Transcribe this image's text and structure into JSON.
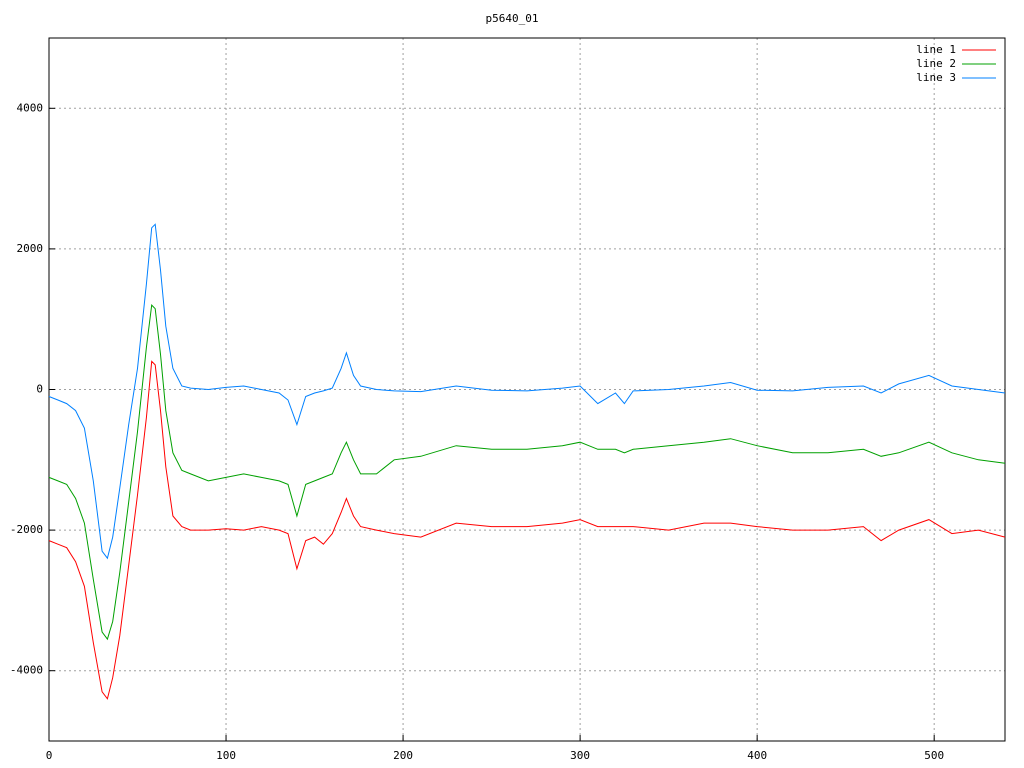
{
  "chart_data": {
    "type": "line",
    "title": "p5640_01",
    "x": [
      0,
      5,
      10,
      15,
      20,
      25,
      30,
      33,
      36,
      40,
      45,
      50,
      55,
      58,
      60,
      63,
      66,
      70,
      75,
      80,
      90,
      100,
      110,
      120,
      130,
      135,
      140,
      145,
      150,
      155,
      160,
      165,
      168,
      172,
      176,
      185,
      195,
      210,
      230,
      250,
      270,
      290,
      300,
      310,
      320,
      325,
      330,
      350,
      370,
      385,
      400,
      420,
      440,
      460,
      470,
      480,
      497,
      510,
      525,
      540
    ],
    "series": [
      {
        "name": "line 1",
        "color": "#ff0000",
        "values": [
          -2150,
          -2200,
          -2250,
          -2450,
          -2800,
          -3600,
          -4300,
          -4400,
          -4100,
          -3500,
          -2500,
          -1500,
          -400,
          400,
          350,
          -300,
          -1100,
          -1800,
          -1950,
          -2000,
          -2000,
          -1980,
          -2000,
          -1950,
          -2000,
          -2050,
          -2550,
          -2150,
          -2100,
          -2200,
          -2050,
          -1750,
          -1550,
          -1800,
          -1950,
          -2000,
          -2050,
          -2100,
          -1900,
          -1950,
          -1950,
          -1900,
          -1850,
          -1950,
          -1950,
          -1950,
          -1950,
          -2000,
          -1900,
          -1900,
          -1950,
          -2000,
          -2000,
          -1950,
          -2150,
          -2000,
          -1850,
          -2050,
          -2000,
          -2100
        ]
      },
      {
        "name": "line 2",
        "color": "#00a000",
        "values": [
          -1250,
          -1300,
          -1350,
          -1550,
          -1900,
          -2700,
          -3450,
          -3550,
          -3300,
          -2600,
          -1600,
          -600,
          600,
          1200,
          1150,
          500,
          -300,
          -900,
          -1150,
          -1200,
          -1300,
          -1250,
          -1200,
          -1250,
          -1300,
          -1350,
          -1800,
          -1350,
          -1300,
          -1250,
          -1200,
          -900,
          -750,
          -1000,
          -1200,
          -1200,
          -1000,
          -950,
          -800,
          -850,
          -850,
          -800,
          -750,
          -850,
          -850,
          -900,
          -850,
          -800,
          -750,
          -700,
          -800,
          -900,
          -900,
          -850,
          -950,
          -900,
          -750,
          -900,
          -1000,
          -1050
        ]
      },
      {
        "name": "line 3",
        "color": "#0080ff",
        "values": [
          -100,
          -150,
          -200,
          -300,
          -550,
          -1300,
          -2300,
          -2400,
          -2100,
          -1400,
          -500,
          300,
          1500,
          2300,
          2350,
          1700,
          900,
          300,
          50,
          20,
          0,
          30,
          50,
          0,
          -50,
          -150,
          -500,
          -100,
          -50,
          -20,
          20,
          300,
          520,
          200,
          50,
          0,
          -20,
          -30,
          50,
          -10,
          -20,
          20,
          50,
          -200,
          -50,
          -200,
          -20,
          0,
          50,
          100,
          -10,
          -20,
          30,
          50,
          -50,
          80,
          200,
          50,
          0,
          -50
        ]
      }
    ],
    "xlim": [
      0,
      540
    ],
    "xticks": [
      0,
      100,
      200,
      300,
      400,
      500
    ],
    "ylim": [
      -5000,
      5000
    ],
    "yticks": [
      -4000,
      -2000,
      0,
      2000,
      4000
    ],
    "grid": true,
    "legend": "top-right"
  }
}
